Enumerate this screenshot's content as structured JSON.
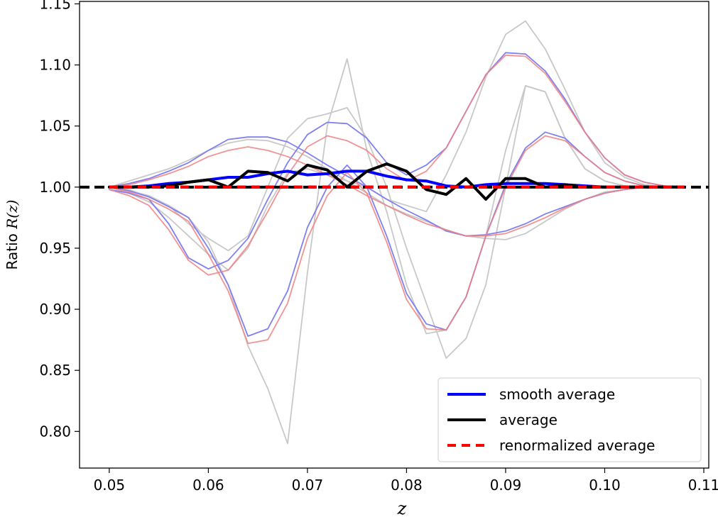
{
  "chart_data": {
    "type": "line",
    "title": "",
    "xlabel": "z",
    "ylabel_prefix": "Ratio ",
    "ylabel_math": "R(z)",
    "xlim": [
      0.047,
      0.1105
    ],
    "ylim": [
      0.77,
      1.152
    ],
    "x_ticks": [
      0.05,
      0.06,
      0.07,
      0.08,
      0.09,
      0.1,
      0.11
    ],
    "x_tick_labels": [
      "0.05",
      "0.06",
      "0.07",
      "0.08",
      "0.09",
      "0.10",
      "0.11"
    ],
    "y_ticks": [
      0.8,
      0.85,
      0.9,
      0.95,
      1.0,
      1.05,
      1.1,
      1.15
    ],
    "y_tick_labels": [
      "0.80",
      "0.85",
      "0.90",
      "0.95",
      "1.00",
      "1.05",
      "1.10",
      "1.15"
    ],
    "grid": false,
    "legend_position": "bottom-right",
    "x": [
      0.05,
      0.052,
      0.054,
      0.056,
      0.058,
      0.06,
      0.062,
      0.064,
      0.066,
      0.068,
      0.07,
      0.072,
      0.074,
      0.076,
      0.078,
      0.08,
      0.082,
      0.084,
      0.086,
      0.088,
      0.09,
      0.092,
      0.094,
      0.096,
      0.098,
      0.1,
      0.102,
      0.104,
      0.106,
      0.108
    ],
    "background_series": [
      {
        "name": "gray 1",
        "color": "#c8c8c8",
        "values": [
          1.0,
          0.998,
          0.992,
          0.985,
          0.975,
          0.955,
          0.92,
          0.87,
          0.835,
          0.79,
          0.93,
          1.05,
          1.105,
          1.03,
          0.98,
          0.92,
          0.88,
          0.883,
          0.91,
          0.96,
          1.03,
          1.083,
          1.078,
          1.04,
          1.015,
          1.005,
          1.001,
          1.0,
          1.0,
          1.0
        ]
      },
      {
        "name": "gray 2",
        "color": "#c8c8c8",
        "values": [
          1.0,
          1.005,
          1.01,
          1.015,
          1.022,
          1.03,
          1.036,
          1.039,
          1.038,
          1.033,
          1.025,
          1.015,
          1.005,
          0.995,
          0.985,
          0.978,
          0.972,
          0.965,
          0.96,
          0.958,
          0.957,
          0.962,
          0.972,
          0.982,
          0.99,
          0.996,
          0.998,
          1.0,
          1.0,
          1.0
        ]
      },
      {
        "name": "gray 3",
        "color": "#c8c8c8",
        "values": [
          1.0,
          0.997,
          0.993,
          0.985,
          0.97,
          0.958,
          0.948,
          0.96,
          1.0,
          1.04,
          1.056,
          1.06,
          1.065,
          1.04,
          1.0,
          0.95,
          0.905,
          0.86,
          0.876,
          0.92,
          1.0,
          1.083,
          1.078,
          1.04,
          1.015,
          1.005,
          1.001,
          1.0,
          1.0,
          1.0
        ]
      },
      {
        "name": "gray 4",
        "color": "#c8c8c8",
        "values": [
          1.0,
          0.995,
          0.988,
          0.975,
          0.96,
          0.945,
          0.932,
          0.95,
          0.985,
          1.012,
          1.015,
          1.01,
          1.005,
          1.0,
          0.99,
          0.985,
          0.98,
          1.01,
          1.045,
          1.09,
          1.125,
          1.136,
          1.113,
          1.08,
          1.045,
          1.02,
          1.008,
          1.002,
          1.0,
          1.0
        ]
      }
    ],
    "blue_series": [
      {
        "name": "blue 1",
        "color": "#8080f0",
        "values": [
          1.0,
          1.003,
          1.007,
          1.013,
          1.02,
          1.03,
          1.039,
          1.041,
          1.041,
          1.037,
          1.028,
          1.018,
          1.009,
          1.0,
          0.99,
          0.981,
          0.973,
          0.964,
          0.96,
          0.961,
          0.964,
          0.97,
          0.978,
          0.984,
          0.99,
          0.995,
          0.998,
          1.0,
          1.0,
          1.0
        ]
      },
      {
        "name": "blue 2",
        "color": "#8080f0",
        "values": [
          0.998,
          0.995,
          0.99,
          0.97,
          0.942,
          0.933,
          0.94,
          0.958,
          0.99,
          1.02,
          1.043,
          1.053,
          1.052,
          1.04,
          1.02,
          1.01,
          1.018,
          1.032,
          1.062,
          1.092,
          1.11,
          1.109,
          1.095,
          1.072,
          1.045,
          1.024,
          1.01,
          1.004,
          1.001,
          1.0
        ]
      },
      {
        "name": "blue 3",
        "color": "#8080f0",
        "values": [
          1.0,
          0.997,
          0.992,
          0.984,
          0.975,
          0.95,
          0.92,
          0.878,
          0.884,
          0.915,
          0.967,
          1.0,
          1.018,
          1.0,
          0.96,
          0.913,
          0.888,
          0.883,
          0.91,
          0.96,
          1.002,
          1.032,
          1.045,
          1.04,
          1.025,
          1.012,
          1.005,
          1.001,
          1.0,
          1.0
        ]
      }
    ],
    "red_series": [
      {
        "name": "red 1",
        "color": "#f08080",
        "values": [
          1.0,
          1.002,
          1.006,
          1.011,
          1.017,
          1.025,
          1.03,
          1.033,
          1.03,
          1.025,
          1.018,
          1.01,
          1.002,
          0.993,
          0.985,
          0.977,
          0.97,
          0.965,
          0.96,
          0.96,
          0.962,
          0.968,
          0.975,
          0.983,
          0.99,
          0.995,
          0.998,
          1.0,
          1.0,
          1.0
        ]
      },
      {
        "name": "red 2",
        "color": "#f08080",
        "values": [
          0.998,
          0.993,
          0.985,
          0.965,
          0.94,
          0.928,
          0.932,
          0.952,
          0.98,
          1.01,
          1.033,
          1.042,
          1.038,
          1.03,
          1.015,
          1.005,
          1.013,
          1.032,
          1.062,
          1.092,
          1.108,
          1.107,
          1.093,
          1.07,
          1.045,
          1.024,
          1.01,
          1.004,
          1.001,
          1.0
        ]
      },
      {
        "name": "red 3",
        "color": "#f08080",
        "values": [
          1.0,
          0.996,
          0.99,
          0.982,
          0.972,
          0.945,
          0.915,
          0.872,
          0.875,
          0.905,
          0.958,
          0.993,
          1.012,
          0.995,
          0.955,
          0.908,
          0.884,
          0.883,
          0.91,
          0.96,
          1.0,
          1.03,
          1.042,
          1.038,
          1.025,
          1.012,
          1.005,
          1.001,
          1.0,
          1.0
        ]
      }
    ],
    "series": [
      {
        "name": "smooth average",
        "color": "#0000ff",
        "values": [
          1.0,
          1.0,
          1.001,
          1.003,
          1.004,
          1.006,
          1.008,
          1.008,
          1.011,
          1.013,
          1.01,
          1.011,
          1.013,
          1.013,
          1.009,
          1.006,
          1.005,
          1.001,
          1.0,
          1.002,
          1.003,
          1.003,
          1.003,
          1.002,
          1.001,
          1.0,
          1.0,
          1.0,
          1.0,
          1.0
        ]
      },
      {
        "name": "average",
        "color": "#000000",
        "values": [
          1.0,
          1.0,
          1.0,
          1.001,
          1.004,
          1.006,
          1.0,
          1.013,
          1.012,
          1.005,
          1.018,
          1.014,
          1.0,
          1.013,
          1.019,
          1.013,
          0.998,
          0.994,
          1.007,
          0.99,
          1.007,
          1.007,
          1.0,
          1.002,
          1.0,
          1.0,
          1.0,
          1.0,
          1.0,
          1.0
        ]
      },
      {
        "name": "renormalized average",
        "color": "#ff0000",
        "dashed": true,
        "values": [
          1.0,
          1.0,
          1.0,
          1.0,
          1.0,
          1.0,
          1.0,
          1.0,
          1.0,
          1.0,
          1.0,
          1.0,
          1.0,
          1.0,
          1.0,
          1.0,
          1.0,
          1.0,
          1.0,
          1.0,
          1.0,
          1.0,
          1.0,
          1.0,
          1.0,
          1.0,
          1.0,
          1.0,
          1.0,
          1.0
        ]
      }
    ],
    "reference_line": {
      "name": "unity reference",
      "y": 1.0,
      "color": "#000000"
    },
    "legend": [
      {
        "label": "smooth average",
        "color": "#0000ff",
        "dashed": false
      },
      {
        "label": "average",
        "color": "#000000",
        "dashed": false
      },
      {
        "label": "renormalized average",
        "color": "#ff0000",
        "dashed": true
      }
    ]
  }
}
